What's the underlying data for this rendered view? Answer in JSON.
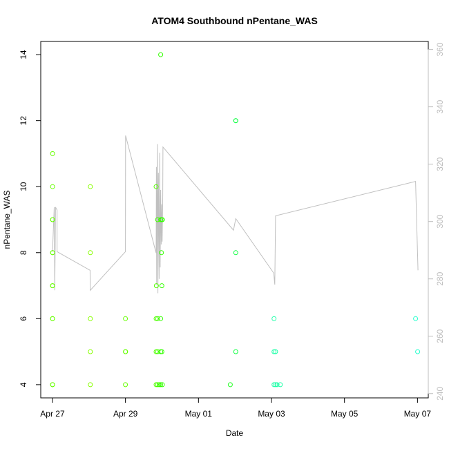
{
  "chart_data": {
    "type": "scatter",
    "title": "ATOM4 Southbound nPentane_WAS",
    "xlabel": "Date",
    "ylabel": "nPentane_WAS",
    "x_axis_type": "date",
    "xlim": [
      "2016-04-26T16:18",
      "2016-05-07T07:06"
    ],
    "ylim": [
      3.6,
      14.4
    ],
    "x_ticks": [
      {
        "date": "2016-04-27T00:00",
        "label": "Apr 27"
      },
      {
        "date": "2016-04-29T00:00",
        "label": "Apr 29"
      },
      {
        "date": "2016-05-01T00:00",
        "label": "May 01"
      },
      {
        "date": "2016-05-03T00:00",
        "label": "May 03"
      },
      {
        "date": "2016-05-05T00:00",
        "label": "May 05"
      },
      {
        "date": "2016-05-07T00:00",
        "label": "May 07"
      }
    ],
    "y_ticks": [
      4,
      6,
      8,
      10,
      12,
      14
    ],
    "y2_ticks": [
      240,
      260,
      280,
      300,
      320,
      340,
      360
    ],
    "y2lim": [
      238.5,
      362.8
    ],
    "grid": false,
    "legend": "none",
    "series": [
      {
        "type": "scatter",
        "points": [
          [
            "2016-04-27T00:02",
            4,
            "#66ff00"
          ],
          [
            "2016-04-27T00:02",
            6,
            "#66ff00"
          ],
          [
            "2016-04-27T00:02",
            7,
            "#66ff00"
          ],
          [
            "2016-04-27T00:05",
            8,
            "#66ff00"
          ],
          [
            "2016-04-27T00:05",
            9,
            "#66ff00"
          ],
          [
            "2016-04-27T00:05",
            10,
            "#66ff00"
          ],
          [
            "2016-04-27T00:05",
            11,
            "#66ff00"
          ],
          [
            "2016-04-27T00:05",
            4,
            "#66ff00"
          ],
          [
            "2016-04-27T00:05",
            6,
            "#66ff00"
          ],
          [
            "2016-04-27T00:05",
            7,
            "#66ff00"
          ],
          [
            "2016-04-27T00:05",
            9,
            "#66ff00"
          ],
          [
            "2016-04-27T00:05",
            8,
            "#66ff00"
          ],
          [
            "2016-04-28T00:55",
            10,
            "#88ff00"
          ],
          [
            "2016-04-28T00:55",
            8,
            "#88ff00"
          ],
          [
            "2016-04-28T00:55",
            6,
            "#88ff00"
          ],
          [
            "2016-04-28T00:55",
            5,
            "#88ff00"
          ],
          [
            "2016-04-28T00:55",
            4,
            "#88ff00"
          ],
          [
            "2016-04-29T00:00",
            6,
            "#66ff00"
          ],
          [
            "2016-04-29T00:00",
            5,
            "#66ff00"
          ],
          [
            "2016-04-29T00:05",
            5,
            "#66ff00"
          ],
          [
            "2016-04-29T00:00",
            4,
            "#66ff00"
          ],
          [
            "2016-04-29T20:10",
            10,
            "#55ff00"
          ],
          [
            "2016-04-29T20:20",
            7,
            "#55ff00"
          ],
          [
            "2016-04-29T20:10",
            6,
            "#55ff00"
          ],
          [
            "2016-04-29T20:10",
            5,
            "#55ff00"
          ],
          [
            "2016-04-29T20:10",
            4,
            "#55ff00"
          ],
          [
            "2016-04-29T21:10",
            9,
            "#44ff00"
          ],
          [
            "2016-04-29T21:10",
            6,
            "#44ff00"
          ],
          [
            "2016-04-29T21:10",
            5,
            "#44ff00"
          ],
          [
            "2016-04-29T21:10",
            4,
            "#44ff00"
          ],
          [
            "2016-04-29T22:10",
            4,
            "#44ff00"
          ],
          [
            "2016-04-29T23:10",
            14,
            "#33ff00"
          ],
          [
            "2016-04-29T23:10",
            9,
            "#33ff00"
          ],
          [
            "2016-04-29T23:10",
            6,
            "#33ff00"
          ],
          [
            "2016-04-29T23:10",
            5,
            "#33ff00"
          ],
          [
            "2016-04-29T23:10",
            4,
            "#33ff00"
          ],
          [
            "2016-04-29T23:55",
            9,
            "#33ff00"
          ],
          [
            "2016-04-29T23:40",
            8,
            "#33ff00"
          ],
          [
            "2016-04-29T23:55",
            7,
            "#33ff00"
          ],
          [
            "2016-04-29T23:55",
            5,
            "#33ff00"
          ],
          [
            "2016-04-30T00:15",
            9,
            "#33ff00"
          ],
          [
            "2016-04-30T00:15",
            4,
            "#33ff00"
          ],
          [
            "2016-05-01T20:55",
            4,
            "#22ff22"
          ],
          [
            "2016-05-02T00:30",
            12,
            "#11ff44"
          ],
          [
            "2016-05-02T00:30",
            12,
            "#11ff44"
          ],
          [
            "2016-05-02T00:30",
            8,
            "#11ff44"
          ],
          [
            "2016-05-02T00:30",
            5,
            "#11ff44"
          ],
          [
            "2016-05-03T01:40",
            6,
            "#22ffaa"
          ],
          [
            "2016-05-03T01:40",
            5,
            "#22ffaa"
          ],
          [
            "2016-05-03T02:40",
            5,
            "#22ffaa"
          ],
          [
            "2016-05-03T01:40",
            4,
            "#22ffaa"
          ],
          [
            "2016-05-03T02:40",
            4,
            "#22ffaa"
          ],
          [
            "2016-05-03T03:40",
            4,
            "#22ffaa"
          ],
          [
            "2016-05-03T05:50",
            4,
            "#22ffaa"
          ],
          [
            "2016-05-06T22:45",
            6,
            "#22ffcc"
          ],
          [
            "2016-05-07T00:05",
            5,
            "#22ffcc"
          ]
        ]
      },
      {
        "type": "line",
        "axis": "right",
        "color": "#c0c0c0",
        "points": [
          [
            "2016-04-27T00:00",
            289.5
          ],
          [
            "2016-04-27T01:10",
            305
          ],
          [
            "2016-04-27T01:30",
            276
          ],
          [
            "2016-04-27T02:00",
            305
          ],
          [
            "2016-04-27T03:00",
            304
          ],
          [
            "2016-04-27T03:00",
            289.5
          ],
          [
            "2016-04-28T00:45",
            283
          ],
          [
            "2016-04-28T00:50",
            276
          ],
          [
            "2016-04-29T00:00",
            289.5
          ],
          [
            "2016-04-29T00:00",
            290
          ],
          [
            "2016-04-29T00:05",
            330
          ],
          [
            "2016-04-29T20:10",
            289
          ],
          [
            "2016-04-29T20:20",
            319
          ],
          [
            "2016-04-29T20:30",
            278
          ],
          [
            "2016-04-29T21:00",
            327
          ],
          [
            "2016-04-29T21:20",
            275
          ],
          [
            "2016-04-29T21:40",
            317
          ],
          [
            "2016-04-29T22:10",
            280
          ],
          [
            "2016-04-29T22:30",
            324
          ],
          [
            "2016-04-29T22:50",
            284
          ],
          [
            "2016-04-29T23:10",
            311
          ],
          [
            "2016-04-29T23:30",
            292
          ],
          [
            "2016-04-29T23:50",
            306
          ],
          [
            "2016-04-30T00:10",
            293
          ],
          [
            "2016-04-30T00:30",
            309
          ],
          [
            "2016-04-30T00:40",
            326
          ],
          [
            "2016-05-01T23:00",
            297
          ],
          [
            "2016-05-02T00:30",
            301
          ],
          [
            "2016-05-03T01:30",
            282
          ],
          [
            "2016-05-03T02:10",
            278
          ],
          [
            "2016-05-03T02:40",
            302
          ],
          [
            "2016-05-06T22:45",
            314
          ],
          [
            "2016-05-07T00:20",
            283
          ]
        ]
      }
    ]
  }
}
